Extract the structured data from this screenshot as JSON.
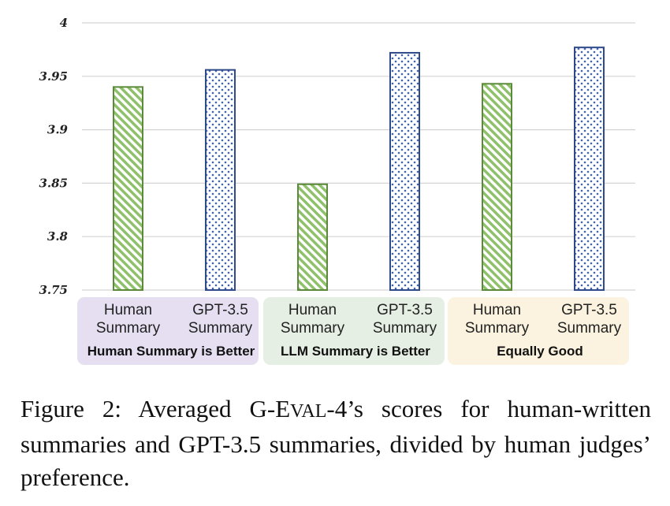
{
  "chart_data": {
    "type": "bar",
    "title": "",
    "xlabel": "",
    "ylabel": "",
    "ylim": [
      3.75,
      4.0
    ],
    "yticks": [
      "3.75",
      "3.8",
      "3.85",
      "3.9",
      "3.95",
      "4"
    ],
    "grid": true,
    "groups": [
      {
        "label": "Human Summary is Better",
        "color": "#e6dff2",
        "bars": [
          {
            "label_line1": "Human",
            "label_line2": "Summary",
            "value": 3.94,
            "pattern": "hatch"
          },
          {
            "label_line1": "GPT-3.5",
            "label_line2": "Summary",
            "value": 3.956,
            "pattern": "dots"
          }
        ]
      },
      {
        "label": "LLM Summary is Better",
        "color": "#e6efe3",
        "bars": [
          {
            "label_line1": "Human",
            "label_line2": "Summary",
            "value": 3.849,
            "pattern": "hatch"
          },
          {
            "label_line1": "GPT-3.5",
            "label_line2": "Summary",
            "value": 3.972,
            "pattern": "dots"
          }
        ]
      },
      {
        "label": "Equally Good",
        "color": "#fbf3df",
        "bars": [
          {
            "label_line1": "Human",
            "label_line2": "Summary",
            "value": 3.943,
            "pattern": "hatch"
          },
          {
            "label_line1": "GPT-3.5",
            "label_line2": "Summary",
            "value": 3.977,
            "pattern": "dots"
          }
        ]
      }
    ],
    "colors": {
      "hatch_stroke": "#5a8a3a",
      "hatch_fill": "#8fc06a",
      "dots_stroke": "#2f4a8a",
      "dots_fill": "#3f63b8"
    }
  },
  "caption": {
    "prefix": "Figure 2:  Averaged G-E",
    "smallcaps": "VAL",
    "suffix": "-4’s scores for human-written summaries and GPT-3.5 summaries, divided by human judges’ preference."
  }
}
